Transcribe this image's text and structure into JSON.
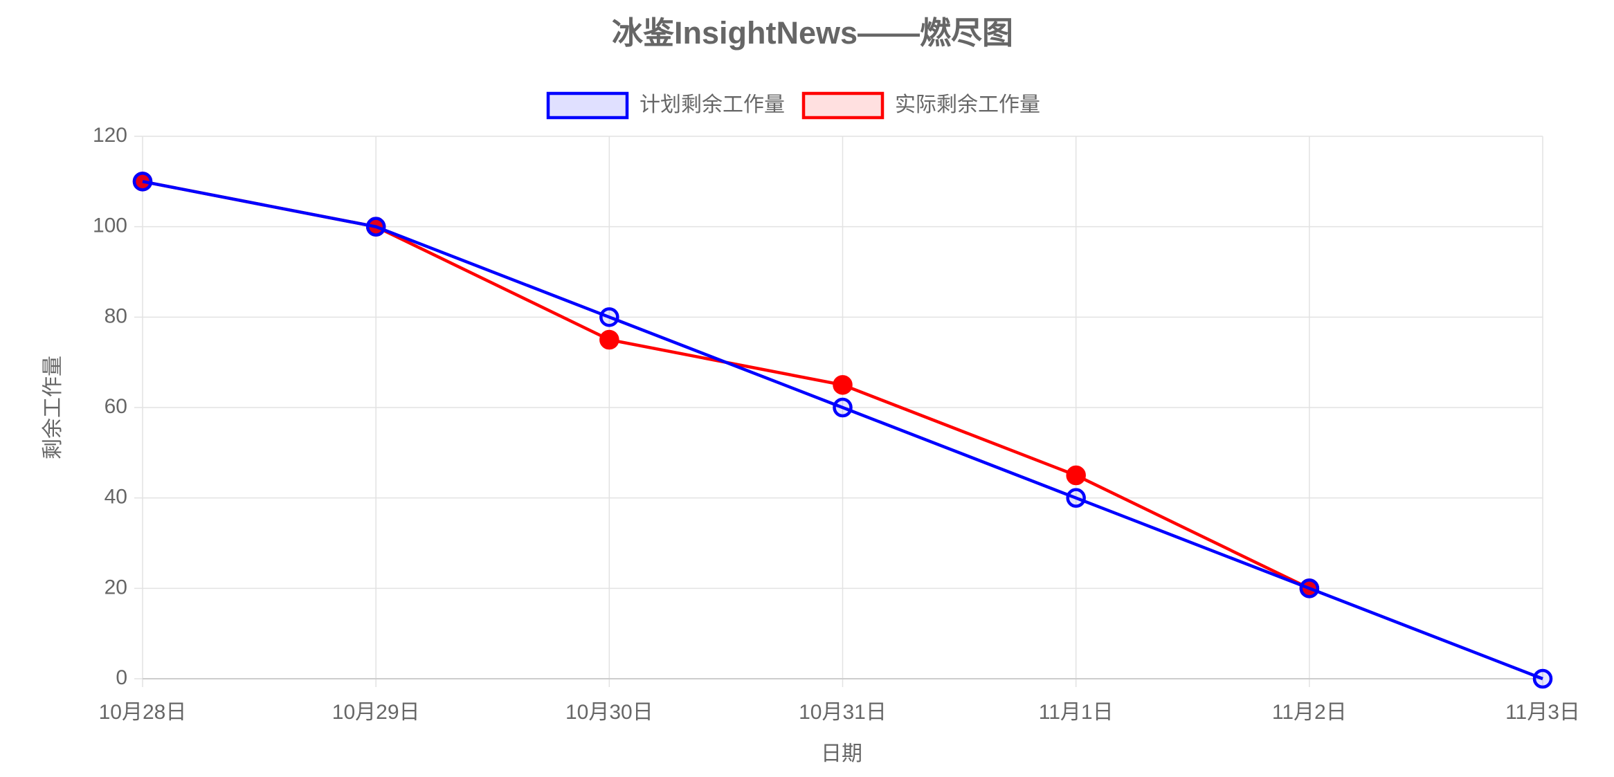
{
  "chart_data": {
    "type": "line",
    "title": "冰鉴InsightNews——燃尽图",
    "x_label": "日期",
    "y_label": "剩余工作量",
    "categories": [
      "10月28日",
      "10月29日",
      "10月30日",
      "10月31日",
      "11月1日",
      "11月2日",
      "11月3日"
    ],
    "series": [
      {
        "name": "计划剩余工作量",
        "color": "#0000ff",
        "values": [
          110,
          100,
          80,
          60,
          40,
          20,
          0
        ]
      },
      {
        "name": "实际剩余工作量",
        "color": "#ff0000",
        "values": [
          110,
          100,
          75,
          65,
          45,
          20,
          null
        ]
      }
    ],
    "ylim": [
      0,
      120
    ],
    "yticks": [
      0,
      20,
      40,
      60,
      80,
      100,
      120
    ],
    "grid": true,
    "legend": "top"
  }
}
